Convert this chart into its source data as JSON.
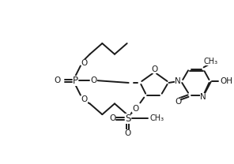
{
  "bg": "#ffffff",
  "lc": "#1a1a1a",
  "lw": 1.4,
  "fs": 7.5,
  "figsize": [
    2.96,
    2.08
  ],
  "dpi": 100,
  "xlim": [
    0,
    296
  ],
  "ylim": [
    0,
    208
  ]
}
